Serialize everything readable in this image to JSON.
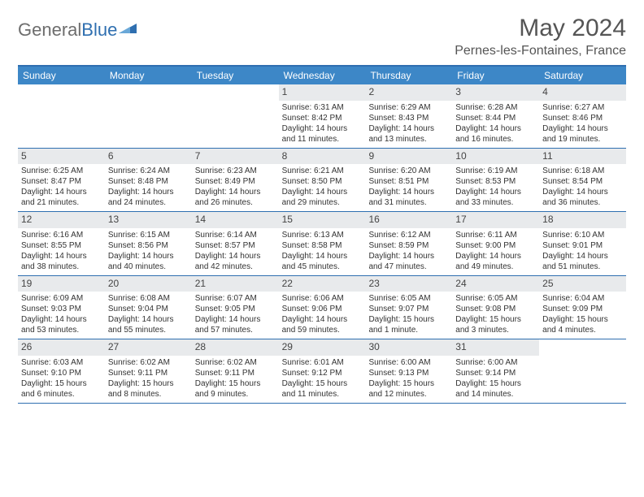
{
  "logo": {
    "part1": "General",
    "part2": "Blue"
  },
  "title": "May 2024",
  "location": "Pernes-les-Fontaines, France",
  "colors": {
    "header_bar": "#3d87c7",
    "border": "#2f6fb0",
    "daynum_bg": "#e8eaec",
    "text": "#333333",
    "logo_gray": "#6d6d6d"
  },
  "weekdays": [
    "Sunday",
    "Monday",
    "Tuesday",
    "Wednesday",
    "Thursday",
    "Friday",
    "Saturday"
  ],
  "weeks": [
    [
      {
        "n": "",
        "lines": [
          "",
          "",
          ""
        ]
      },
      {
        "n": "",
        "lines": [
          "",
          "",
          ""
        ]
      },
      {
        "n": "",
        "lines": [
          "",
          "",
          ""
        ]
      },
      {
        "n": "1",
        "lines": [
          "Sunrise: 6:31 AM",
          "Sunset: 8:42 PM",
          "Daylight: 14 hours and 11 minutes."
        ]
      },
      {
        "n": "2",
        "lines": [
          "Sunrise: 6:29 AM",
          "Sunset: 8:43 PM",
          "Daylight: 14 hours and 13 minutes."
        ]
      },
      {
        "n": "3",
        "lines": [
          "Sunrise: 6:28 AM",
          "Sunset: 8:44 PM",
          "Daylight: 14 hours and 16 minutes."
        ]
      },
      {
        "n": "4",
        "lines": [
          "Sunrise: 6:27 AM",
          "Sunset: 8:46 PM",
          "Daylight: 14 hours and 19 minutes."
        ]
      }
    ],
    [
      {
        "n": "5",
        "lines": [
          "Sunrise: 6:25 AM",
          "Sunset: 8:47 PM",
          "Daylight: 14 hours and 21 minutes."
        ]
      },
      {
        "n": "6",
        "lines": [
          "Sunrise: 6:24 AM",
          "Sunset: 8:48 PM",
          "Daylight: 14 hours and 24 minutes."
        ]
      },
      {
        "n": "7",
        "lines": [
          "Sunrise: 6:23 AM",
          "Sunset: 8:49 PM",
          "Daylight: 14 hours and 26 minutes."
        ]
      },
      {
        "n": "8",
        "lines": [
          "Sunrise: 6:21 AM",
          "Sunset: 8:50 PM",
          "Daylight: 14 hours and 29 minutes."
        ]
      },
      {
        "n": "9",
        "lines": [
          "Sunrise: 6:20 AM",
          "Sunset: 8:51 PM",
          "Daylight: 14 hours and 31 minutes."
        ]
      },
      {
        "n": "10",
        "lines": [
          "Sunrise: 6:19 AM",
          "Sunset: 8:53 PM",
          "Daylight: 14 hours and 33 minutes."
        ]
      },
      {
        "n": "11",
        "lines": [
          "Sunrise: 6:18 AM",
          "Sunset: 8:54 PM",
          "Daylight: 14 hours and 36 minutes."
        ]
      }
    ],
    [
      {
        "n": "12",
        "lines": [
          "Sunrise: 6:16 AM",
          "Sunset: 8:55 PM",
          "Daylight: 14 hours and 38 minutes."
        ]
      },
      {
        "n": "13",
        "lines": [
          "Sunrise: 6:15 AM",
          "Sunset: 8:56 PM",
          "Daylight: 14 hours and 40 minutes."
        ]
      },
      {
        "n": "14",
        "lines": [
          "Sunrise: 6:14 AM",
          "Sunset: 8:57 PM",
          "Daylight: 14 hours and 42 minutes."
        ]
      },
      {
        "n": "15",
        "lines": [
          "Sunrise: 6:13 AM",
          "Sunset: 8:58 PM",
          "Daylight: 14 hours and 45 minutes."
        ]
      },
      {
        "n": "16",
        "lines": [
          "Sunrise: 6:12 AM",
          "Sunset: 8:59 PM",
          "Daylight: 14 hours and 47 minutes."
        ]
      },
      {
        "n": "17",
        "lines": [
          "Sunrise: 6:11 AM",
          "Sunset: 9:00 PM",
          "Daylight: 14 hours and 49 minutes."
        ]
      },
      {
        "n": "18",
        "lines": [
          "Sunrise: 6:10 AM",
          "Sunset: 9:01 PM",
          "Daylight: 14 hours and 51 minutes."
        ]
      }
    ],
    [
      {
        "n": "19",
        "lines": [
          "Sunrise: 6:09 AM",
          "Sunset: 9:03 PM",
          "Daylight: 14 hours and 53 minutes."
        ]
      },
      {
        "n": "20",
        "lines": [
          "Sunrise: 6:08 AM",
          "Sunset: 9:04 PM",
          "Daylight: 14 hours and 55 minutes."
        ]
      },
      {
        "n": "21",
        "lines": [
          "Sunrise: 6:07 AM",
          "Sunset: 9:05 PM",
          "Daylight: 14 hours and 57 minutes."
        ]
      },
      {
        "n": "22",
        "lines": [
          "Sunrise: 6:06 AM",
          "Sunset: 9:06 PM",
          "Daylight: 14 hours and 59 minutes."
        ]
      },
      {
        "n": "23",
        "lines": [
          "Sunrise: 6:05 AM",
          "Sunset: 9:07 PM",
          "Daylight: 15 hours and 1 minute."
        ]
      },
      {
        "n": "24",
        "lines": [
          "Sunrise: 6:05 AM",
          "Sunset: 9:08 PM",
          "Daylight: 15 hours and 3 minutes."
        ]
      },
      {
        "n": "25",
        "lines": [
          "Sunrise: 6:04 AM",
          "Sunset: 9:09 PM",
          "Daylight: 15 hours and 4 minutes."
        ]
      }
    ],
    [
      {
        "n": "26",
        "lines": [
          "Sunrise: 6:03 AM",
          "Sunset: 9:10 PM",
          "Daylight: 15 hours and 6 minutes."
        ]
      },
      {
        "n": "27",
        "lines": [
          "Sunrise: 6:02 AM",
          "Sunset: 9:11 PM",
          "Daylight: 15 hours and 8 minutes."
        ]
      },
      {
        "n": "28",
        "lines": [
          "Sunrise: 6:02 AM",
          "Sunset: 9:11 PM",
          "Daylight: 15 hours and 9 minutes."
        ]
      },
      {
        "n": "29",
        "lines": [
          "Sunrise: 6:01 AM",
          "Sunset: 9:12 PM",
          "Daylight: 15 hours and 11 minutes."
        ]
      },
      {
        "n": "30",
        "lines": [
          "Sunrise: 6:00 AM",
          "Sunset: 9:13 PM",
          "Daylight: 15 hours and 12 minutes."
        ]
      },
      {
        "n": "31",
        "lines": [
          "Sunrise: 6:00 AM",
          "Sunset: 9:14 PM",
          "Daylight: 15 hours and 14 minutes."
        ]
      },
      {
        "n": "",
        "lines": [
          "",
          "",
          ""
        ]
      }
    ]
  ]
}
